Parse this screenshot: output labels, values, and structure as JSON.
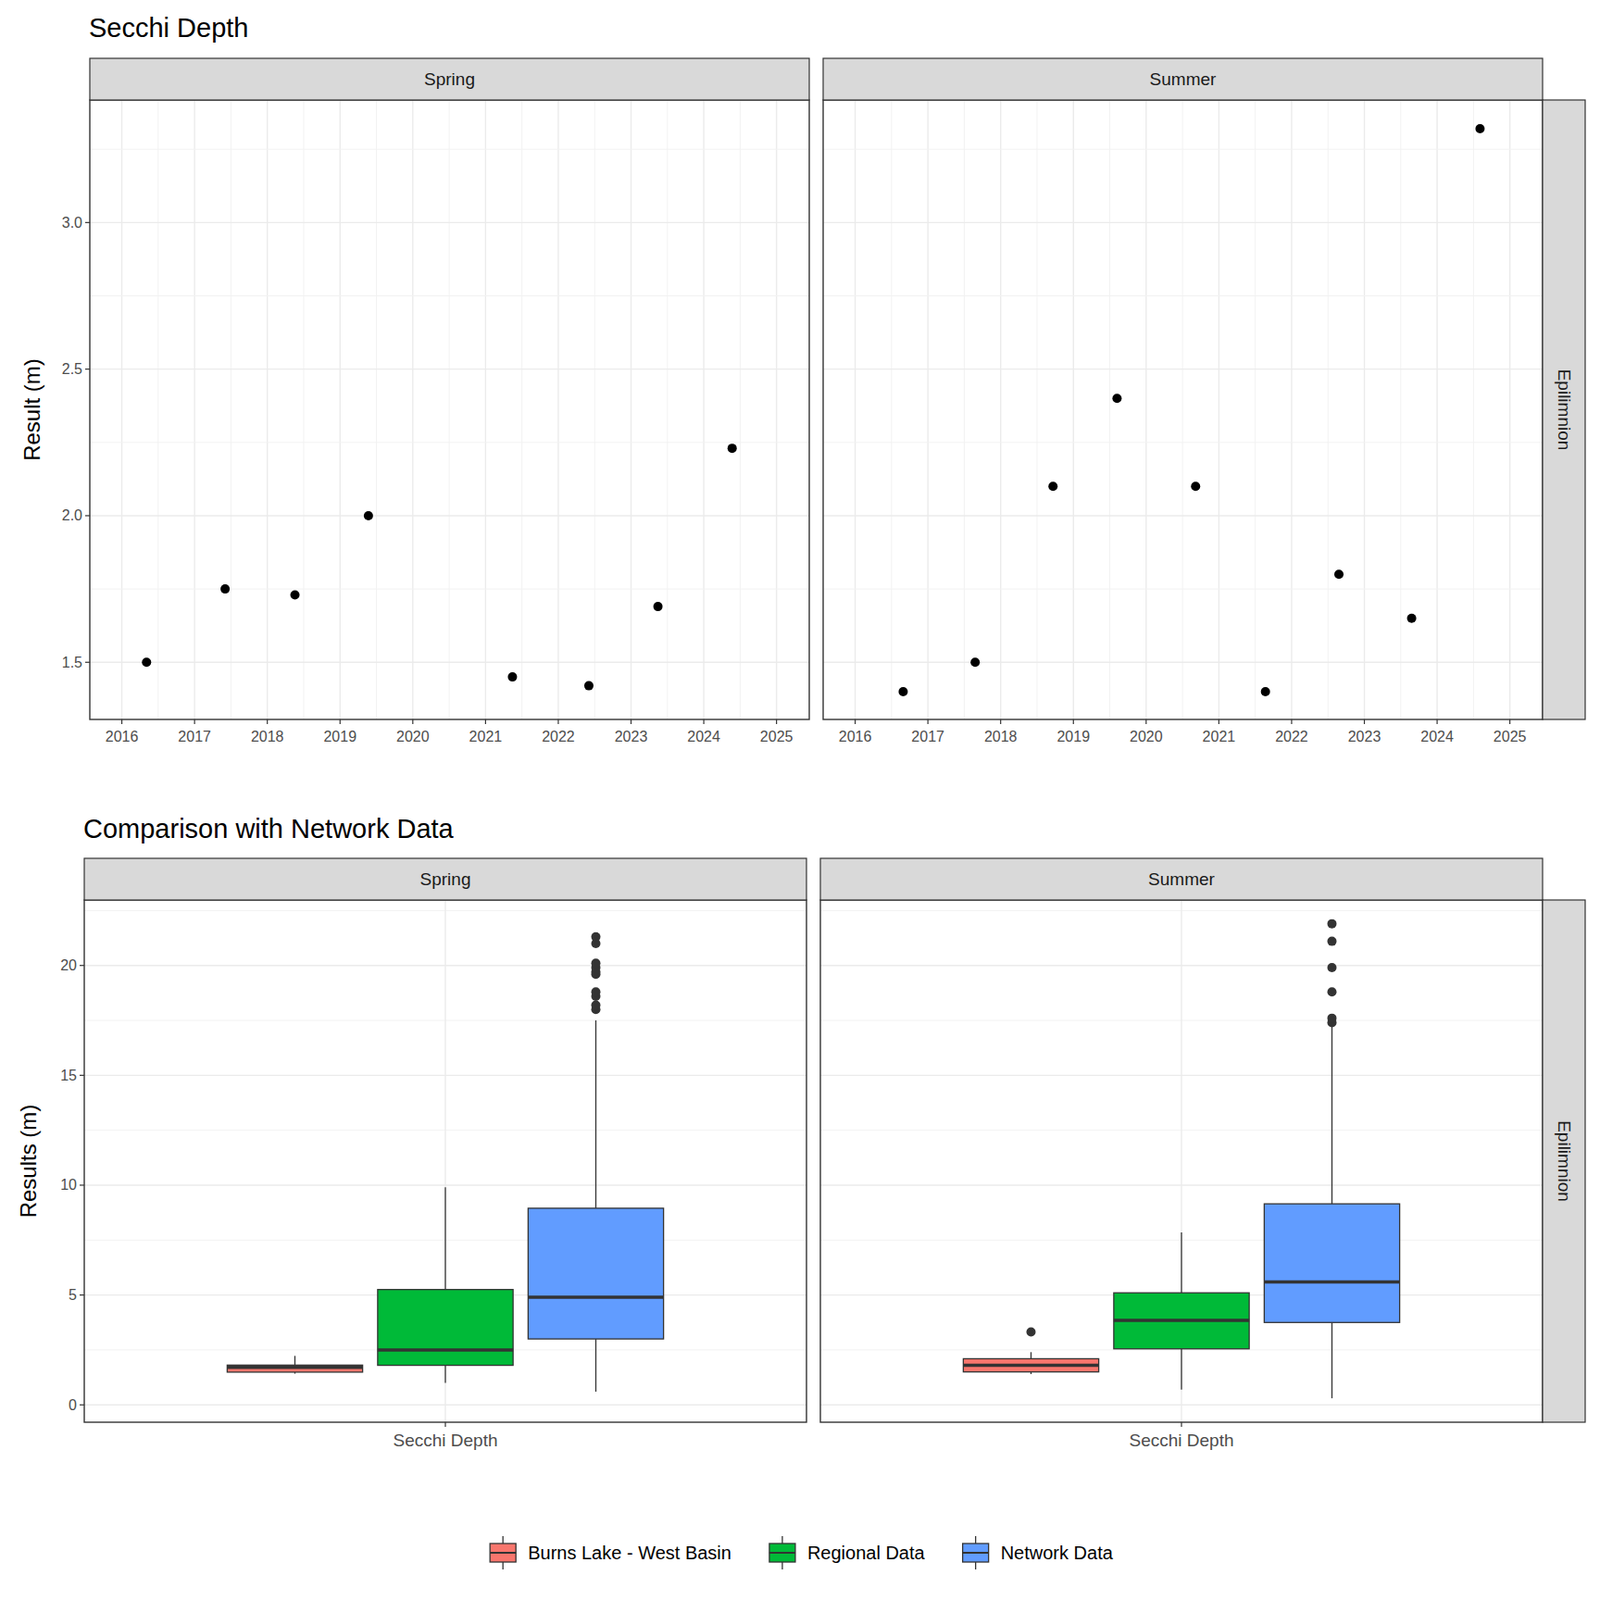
{
  "chart_data": [
    {
      "type": "scatter",
      "title": "Secchi Depth",
      "y_label": "Result (m)",
      "row_label": "Epilimnion",
      "color": "#000000",
      "grid": true,
      "xlim": [
        2015.56,
        2025.45
      ],
      "xticks": [
        2016,
        2017,
        2018,
        2019,
        2020,
        2021,
        2022,
        2023,
        2024,
        2025
      ],
      "ylim": [
        1.305,
        3.418
      ],
      "yticks": [
        1.5,
        {
          "value": 2,
          "label": "2.0"
        },
        2.5,
        {
          "value": 3,
          "label": "3.0"
        }
      ],
      "series": [
        {
          "name": "Spring",
          "x": [
            2016.34,
            2017.42,
            2018.38,
            2019.39,
            2021.37,
            2022.42,
            2023.37,
            2024.39
          ],
          "values": [
            1.5,
            1.75,
            1.73,
            2.0,
            1.45,
            1.42,
            1.69,
            2.23
          ]
        },
        {
          "name": "Summer",
          "x": [
            2016.66,
            2017.65,
            2018.72,
            2019.6,
            2020.68,
            2021.64,
            2022.65,
            2023.65,
            2024.59
          ],
          "values": [
            1.4,
            1.5,
            2.1,
            2.4,
            2.1,
            1.4,
            1.8,
            1.65,
            3.32
          ]
        }
      ]
    },
    {
      "type": "box",
      "title": "Comparison with Network Data",
      "y_label": "Results (m)",
      "row_label": "Epilimnion",
      "facets": [
        "Spring",
        "Summer"
      ],
      "categories": [
        "Secchi Depth"
      ],
      "legend": "bottom",
      "grid": true,
      "ylim": [
        -0.79,
        22.98
      ],
      "yticks": [
        0,
        5,
        10,
        15,
        20
      ],
      "series": [
        {
          "name": "Burns Lake - West Basin",
          "color": "#F8766D",
          "min": [
            1.42,
            1.4
          ],
          "q1": [
            1.49,
            1.5
          ],
          "median": [
            1.71,
            1.8
          ],
          "q3": [
            1.81,
            2.1
          ],
          "max": [
            2.23,
            2.4
          ],
          "outliers": [
            [],
            [
              3.32
            ]
          ]
        },
        {
          "name": "Regional Data",
          "color": "#00BA38",
          "min": [
            1.0,
            0.7
          ],
          "q1": [
            1.8,
            2.55
          ],
          "median": [
            2.5,
            3.85
          ],
          "q3": [
            5.25,
            5.1
          ],
          "max": [
            9.9,
            7.85
          ],
          "outliers": [
            [],
            []
          ]
        },
        {
          "name": "Network Data",
          "color": "#619CFF",
          "min": [
            0.6,
            0.3
          ],
          "q1": [
            3.0,
            3.75
          ],
          "median": [
            4.9,
            5.6
          ],
          "q3": [
            8.95,
            9.15
          ],
          "max": [
            17.5,
            17.3
          ],
          "outliers": [
            [
              18.0,
              18.2,
              18.6,
              18.8,
              19.6,
              19.7,
              19.9,
              20.1,
              21.0,
              21.3
            ],
            [
              17.4,
              17.6,
              18.8,
              19.9,
              21.1,
              21.9
            ]
          ]
        }
      ]
    }
  ]
}
